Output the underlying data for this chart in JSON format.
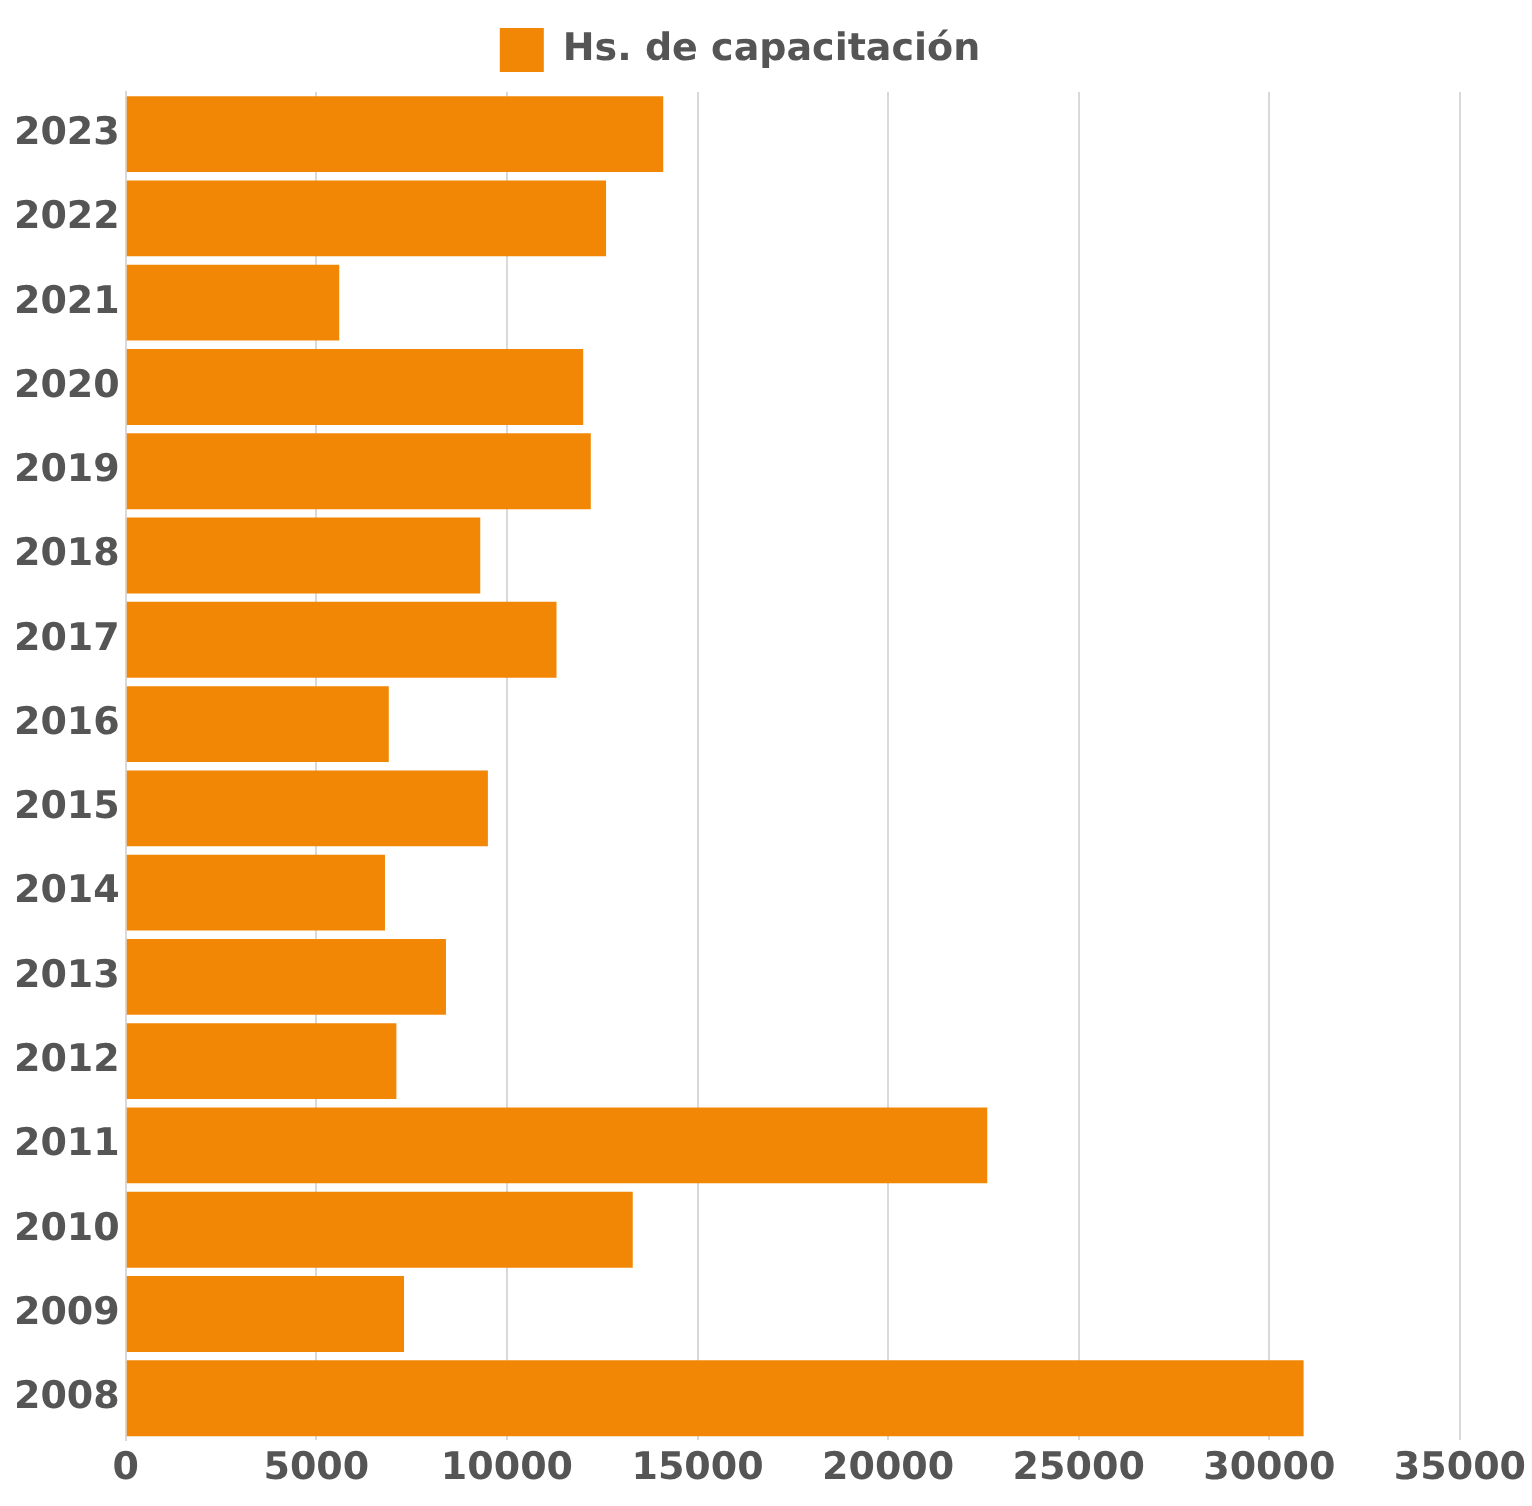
{
  "chart_data": {
    "type": "bar",
    "orientation": "horizontal",
    "categories": [
      "2023",
      "2022",
      "2021",
      "2020",
      "2019",
      "2018",
      "2017",
      "2016",
      "2015",
      "2014",
      "2013",
      "2012",
      "2011",
      "2010",
      "2009",
      "2008"
    ],
    "series": [
      {
        "name": "Hs. de capacitación",
        "color": "#f28705",
        "values": [
          14100,
          12600,
          5600,
          12000,
          12200,
          9300,
          11300,
          6900,
          9500,
          6800,
          8400,
          7100,
          22600,
          13300,
          7300,
          30900
        ]
      }
    ],
    "xlim": [
      0,
      35000
    ],
    "xticks": [
      0,
      5000,
      10000,
      15000,
      20000,
      25000,
      30000,
      35000
    ],
    "grid": "x",
    "legend": "top"
  }
}
